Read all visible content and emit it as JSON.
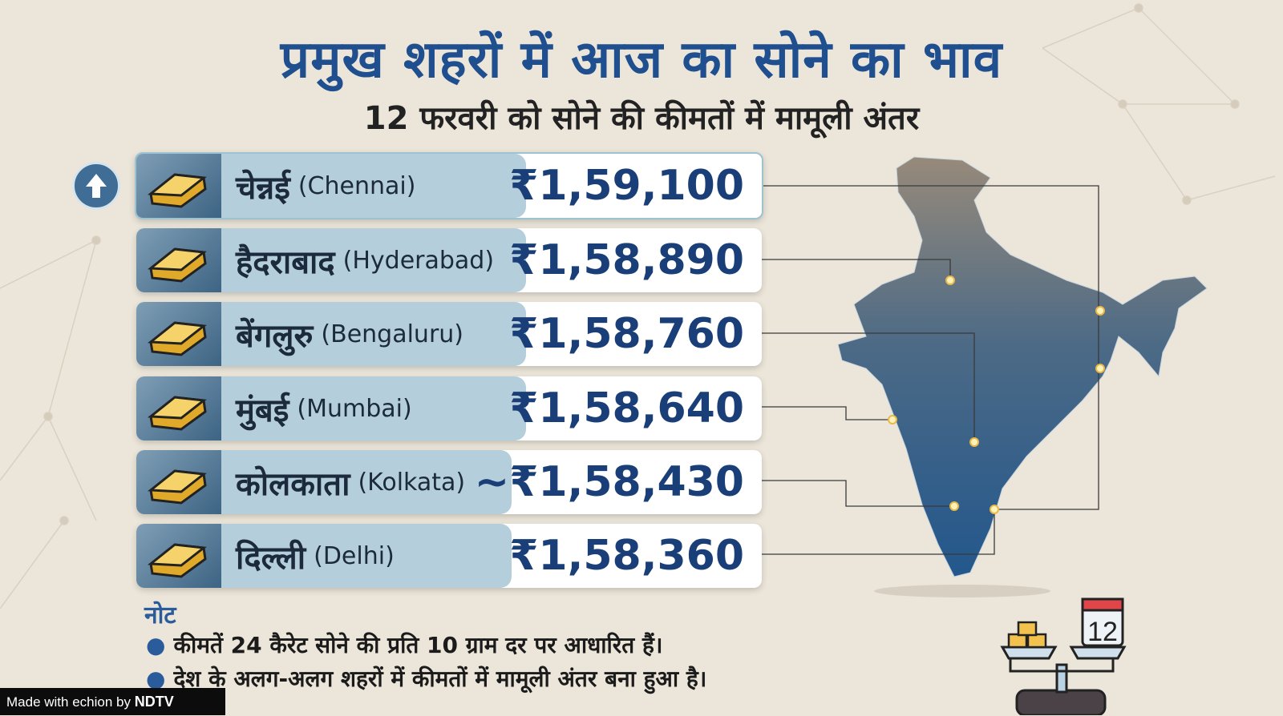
{
  "title": "प्रमुख शहरों में आज का सोने का भाव",
  "subtitle": "12 फरवरी को सोने की कीमतों में मामूली अंतर",
  "rows": [
    {
      "hindi": "चेन्नई",
      "english": "(Chennai)",
      "price": "₹1,59,100",
      "highlight": true
    },
    {
      "hindi": "हैदराबाद",
      "english": "(Hyderabad)",
      "price": "₹1,58,890"
    },
    {
      "hindi": "बेंगलुरु",
      "english": "(Bengaluru)",
      "price": "₹1,58,760"
    },
    {
      "hindi": "मुंबई",
      "english": "(Mumbai)",
      "price": "₹1,58,640"
    },
    {
      "hindi": "कोलकाता",
      "english": "(Kolkata)",
      "price": "~₹1,58,430"
    },
    {
      "hindi": "दिल्ली",
      "english": "(Delhi)",
      "price": "₹1,58,360"
    }
  ],
  "note": {
    "heading": "नोट",
    "lines": [
      "कीमतें 24 कैरेट सोने की प्रति 10 ग्राम दर पर आधारित हैं।",
      "देश के अलग-अलग शहरों में कीमतों में मामूली अंतर बना हुआ है।"
    ]
  },
  "calendar_day": "12",
  "watermark": {
    "prefix": "Made with ",
    "brand": "echion",
    "by": " by ",
    "ndtv": "NDTV"
  },
  "colors": {
    "accent": "#1f4f8f",
    "background": "#ece6da",
    "gold": "#f2c14e"
  }
}
